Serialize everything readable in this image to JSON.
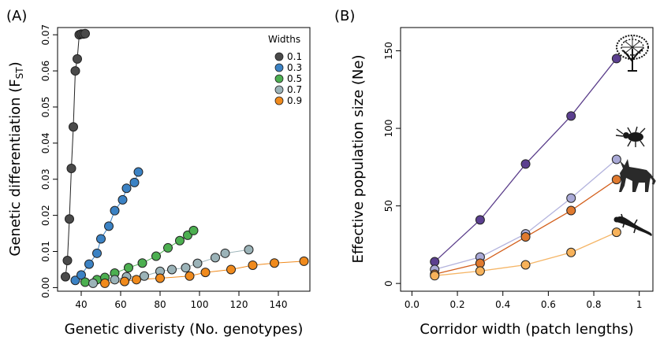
{
  "chart_data": [
    {
      "type": "scatter",
      "panel_label": "(A)",
      "xlabel": "Genetic diveristy (No. genotypes)",
      "ylabel_main": "Genetic differentiation (F",
      "ylabel_sub": "ST",
      "ylabel_end": ")",
      "xlim": [
        28,
        156
      ],
      "ylim": [
        -0.001,
        0.072
      ],
      "xticks": [
        40,
        60,
        80,
        100,
        120,
        140
      ],
      "yticks": [
        0.0,
        0.01,
        0.02,
        0.03,
        0.04,
        0.05,
        0.06,
        0.07
      ],
      "ytick_labels": [
        "0.00",
        "0.01",
        "0.02",
        "0.03",
        "0.04",
        "0.05",
        "0.06",
        "0.07"
      ],
      "legend_title": "Widths",
      "legend_position": "top-right",
      "series": [
        {
          "name": "0.1",
          "color": "#4a4a4a",
          "x": [
            32,
            33,
            34,
            35,
            36,
            37,
            38,
            39,
            40,
            41,
            42
          ],
          "y": [
            0.003,
            0.0075,
            0.019,
            0.033,
            0.0445,
            0.06,
            0.0633,
            0.07,
            0.0702,
            0.0702,
            0.0703
          ]
        },
        {
          "name": "0.3",
          "color": "#3b82c4",
          "x": [
            37,
            40,
            44,
            48,
            50,
            54,
            57,
            61,
            63,
            67,
            69
          ],
          "y": [
            0.002,
            0.0035,
            0.0065,
            0.0095,
            0.0135,
            0.017,
            0.0213,
            0.0243,
            0.0275,
            0.0291,
            0.032
          ]
        },
        {
          "name": "0.5",
          "color": "#4caf50",
          "x": [
            42,
            48,
            52,
            57,
            64,
            71,
            78,
            84,
            90,
            94,
            97
          ],
          "y": [
            0.0015,
            0.0022,
            0.0028,
            0.004,
            0.0055,
            0.0068,
            0.0087,
            0.011,
            0.013,
            0.0145,
            0.0158
          ]
        },
        {
          "name": "0.7",
          "color": "#9bb3b8",
          "x": [
            46,
            57,
            63,
            72,
            80,
            86,
            93,
            99,
            108,
            113,
            125
          ],
          "y": [
            0.0012,
            0.0022,
            0.003,
            0.0032,
            0.0045,
            0.005,
            0.0055,
            0.0067,
            0.0083,
            0.0095,
            0.0105
          ]
        },
        {
          "name": "0.9",
          "color": "#f08a1c",
          "x": [
            52,
            62,
            68,
            80,
            95,
            103,
            116,
            127,
            138,
            153
          ],
          "y": [
            0.0012,
            0.0017,
            0.0022,
            0.0026,
            0.0032,
            0.0042,
            0.005,
            0.0062,
            0.0068,
            0.0073
          ]
        }
      ]
    },
    {
      "type": "line",
      "panel_label": "(B)",
      "xlabel": "Corridor width (patch lengths)",
      "ylabel": "Effective population size (Ne)",
      "xlim": [
        -0.05,
        1.06
      ],
      "ylim": [
        -5,
        165
      ],
      "xticks": [
        0.0,
        0.2,
        0.4,
        0.6,
        0.8,
        1.0
      ],
      "xtick_labels": [
        "0.0",
        "0.2",
        "0.4",
        "0.6",
        "0.8",
        "1"
      ],
      "yticks": [
        0,
        50,
        100,
        150
      ],
      "x": [
        0.1,
        0.3,
        0.5,
        0.7,
        0.9
      ],
      "series": [
        {
          "icon": "tree-icon",
          "line_color": "#5a3d8a",
          "point_color": "#5b3f8f",
          "values": [
            14,
            41,
            77,
            108,
            145
          ]
        },
        {
          "icon": "beetle-icon",
          "line_color": "#b3b3dd",
          "point_color": "#a9a9d6",
          "values": [
            9,
            17,
            32,
            55,
            80
          ]
        },
        {
          "icon": "wolf-icon",
          "line_color": "#d35f1c",
          "point_color": "#e07a2f",
          "values": [
            6,
            13,
            30,
            47,
            67
          ]
        },
        {
          "icon": "salamander-icon",
          "line_color": "#f5b566",
          "point_color": "#f7b25a",
          "values": [
            5,
            8,
            12,
            20,
            33
          ]
        }
      ]
    }
  ]
}
